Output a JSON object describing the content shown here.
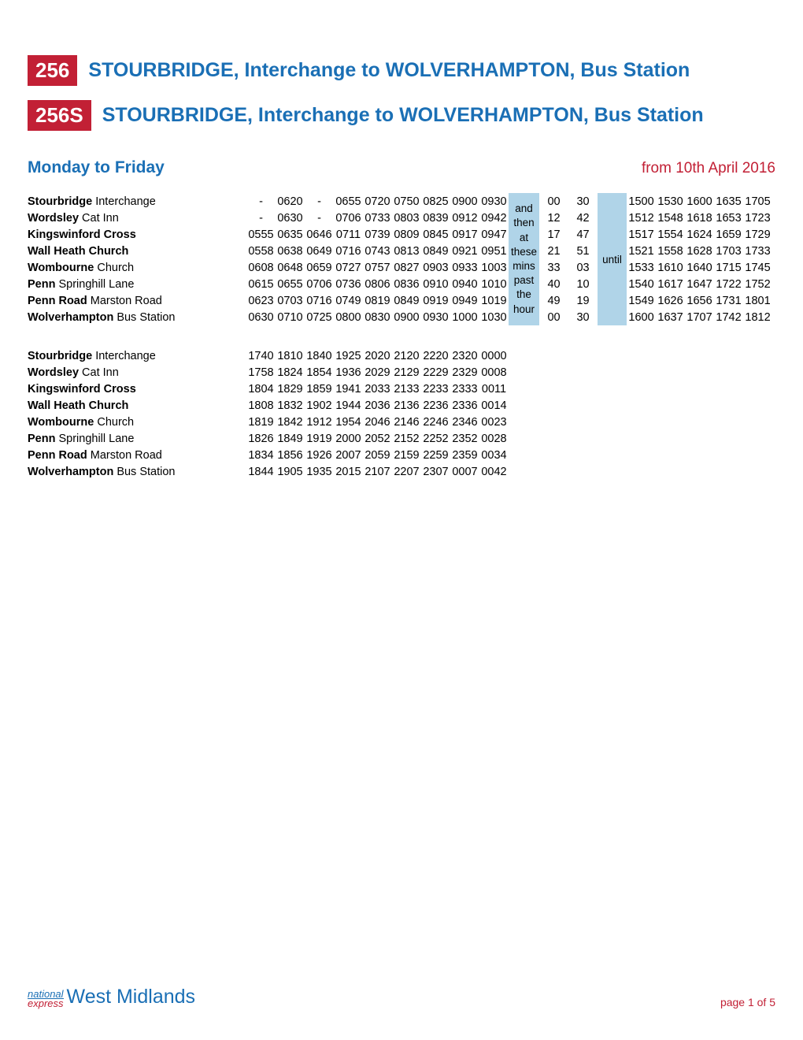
{
  "routes": [
    {
      "badge": "256",
      "title": "STOURBRIDGE, Interchange to WOLVERHAMPTON, Bus Station"
    },
    {
      "badge": "256S",
      "title": "STOURBRIDGE, Interchange to WOLVERHAMPTON, Bus Station"
    }
  ],
  "day_label": "Monday to Friday",
  "date_from": "from 10th April 2016",
  "stops": [
    {
      "bold": "Stourbridge",
      "light": " Interchange"
    },
    {
      "bold": "Wordsley",
      "light": " Cat Inn"
    },
    {
      "bold": "Kingswinford Cross",
      "light": ""
    },
    {
      "bold": "Wall Heath Church",
      "light": ""
    },
    {
      "bold": "Wombourne",
      "light": " Church"
    },
    {
      "bold": "Penn",
      "light": " Springhill Lane"
    },
    {
      "bold": "Penn Road",
      "light": " Marston Road"
    },
    {
      "bold": "Wolverhampton",
      "light": " Bus Station"
    }
  ],
  "table1": {
    "interval_col1": [
      "",
      "and",
      "then",
      "at",
      "these",
      "mins",
      "past",
      "the",
      "hour"
    ],
    "interval_col2": "until",
    "times_before": [
      [
        "-",
        "0620",
        "-",
        "0655",
        "0720",
        "0750",
        "0825",
        "0900",
        "0930"
      ],
      [
        "-",
        "0630",
        "-",
        "0706",
        "0733",
        "0803",
        "0839",
        "0912",
        "0942"
      ],
      [
        "0555",
        "0635",
        "0646",
        "0711",
        "0739",
        "0809",
        "0845",
        "0917",
        "0947"
      ],
      [
        "0558",
        "0638",
        "0649",
        "0716",
        "0743",
        "0813",
        "0849",
        "0921",
        "0951"
      ],
      [
        "0608",
        "0648",
        "0659",
        "0727",
        "0757",
        "0827",
        "0903",
        "0933",
        "1003"
      ],
      [
        "0615",
        "0655",
        "0706",
        "0736",
        "0806",
        "0836",
        "0910",
        "0940",
        "1010"
      ],
      [
        "0623",
        "0703",
        "0716",
        "0749",
        "0819",
        "0849",
        "0919",
        "0949",
        "1019"
      ],
      [
        "0630",
        "0710",
        "0725",
        "0800",
        "0830",
        "0900",
        "0930",
        "1000",
        "1030"
      ]
    ],
    "mins_a": [
      "00",
      "12",
      "17",
      "21",
      "33",
      "40",
      "49",
      "00"
    ],
    "mins_b": [
      "30",
      "42",
      "47",
      "51",
      "03",
      "10",
      "19",
      "30"
    ],
    "times_after": [
      [
        "1500",
        "1530",
        "1600",
        "1635",
        "1705"
      ],
      [
        "1512",
        "1548",
        "1618",
        "1653",
        "1723"
      ],
      [
        "1517",
        "1554",
        "1624",
        "1659",
        "1729"
      ],
      [
        "1521",
        "1558",
        "1628",
        "1703",
        "1733"
      ],
      [
        "1533",
        "1610",
        "1640",
        "1715",
        "1745"
      ],
      [
        "1540",
        "1617",
        "1647",
        "1722",
        "1752"
      ],
      [
        "1549",
        "1626",
        "1656",
        "1731",
        "1801"
      ],
      [
        "1600",
        "1637",
        "1707",
        "1742",
        "1812"
      ]
    ]
  },
  "table2": {
    "times": [
      [
        "1740",
        "1810",
        "1840",
        "1925",
        "2020",
        "2120",
        "2220",
        "2320",
        "0000"
      ],
      [
        "1758",
        "1824",
        "1854",
        "1936",
        "2029",
        "2129",
        "2229",
        "2329",
        "0008"
      ],
      [
        "1804",
        "1829",
        "1859",
        "1941",
        "2033",
        "2133",
        "2233",
        "2333",
        "0011"
      ],
      [
        "1808",
        "1832",
        "1902",
        "1944",
        "2036",
        "2136",
        "2236",
        "2336",
        "0014"
      ],
      [
        "1819",
        "1842",
        "1912",
        "1954",
        "2046",
        "2146",
        "2246",
        "2346",
        "0023"
      ],
      [
        "1826",
        "1849",
        "1919",
        "2000",
        "2052",
        "2152",
        "2252",
        "2352",
        "0028"
      ],
      [
        "1834",
        "1856",
        "1926",
        "2007",
        "2059",
        "2159",
        "2259",
        "2359",
        "0034"
      ],
      [
        "1844",
        "1905",
        "1935",
        "2015",
        "2107",
        "2207",
        "2307",
        "0007",
        "0042"
      ]
    ]
  },
  "brand": {
    "national": "national",
    "express": "express",
    "region": "West Midlands"
  },
  "page": "page 1 of 5",
  "colors": {
    "accent_blue": "#1a6fb5",
    "accent_red": "#c22035",
    "interval_bg": "#b0d4e8"
  }
}
